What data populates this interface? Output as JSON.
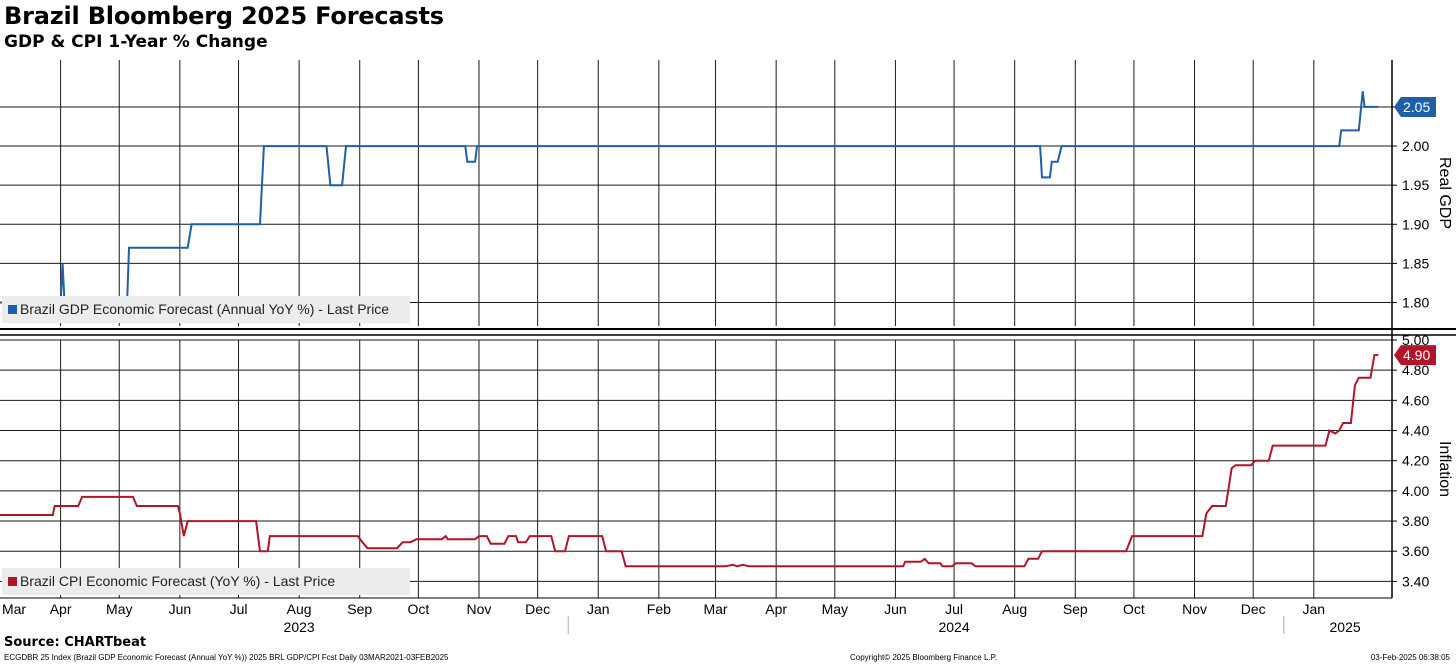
{
  "header": {
    "title": "Brazil Bloomberg 2025 Forecasts",
    "subtitle": "GDP & CPI 1-Year % Change"
  },
  "footer": {
    "source": "Source: CHARTbeat",
    "left_note": "ECGDBR 25 Index (Brazil GDP Economic Forecast (Annual YoY %)) 2025 BRL GDP/CPI Fcst  Daily 03MAR2021-03FEB2025",
    "copyright": "Copyright© 2025 Bloomberg Finance L.P.",
    "timestamp": "03-Feb-2025 06:38:05"
  },
  "chart_data": [
    {
      "type": "line",
      "ylabel": "Real GDP",
      "ylim": [
        1.77,
        2.11
      ],
      "yticks": [
        "1.80",
        "1.85",
        "1.90",
        "1.95",
        "2.00",
        "2.05"
      ],
      "grid": true,
      "legend_position": "bottom-left",
      "last_value": "2.05",
      "series": [
        {
          "name": "Brazil GDP Economic Forecast (Annual YoY %) - Last Price",
          "color": "#1f5fa6",
          "points": [
            [
              "2023-03-01",
              1.8
            ],
            [
              "2023-04-01",
              1.8
            ],
            [
              "2023-04-02",
              1.85
            ],
            [
              "2023-04-03",
              1.8
            ],
            [
              "2023-05-05",
              1.8
            ],
            [
              "2023-05-06",
              1.87
            ],
            [
              "2023-06-05",
              1.87
            ],
            [
              "2023-06-07",
              1.9
            ],
            [
              "2023-07-12",
              1.9
            ],
            [
              "2023-07-14",
              2.0
            ],
            [
              "2023-08-15",
              2.0
            ],
            [
              "2023-08-17",
              1.95
            ],
            [
              "2023-08-23",
              1.95
            ],
            [
              "2023-08-25",
              2.0
            ],
            [
              "2023-10-25",
              2.0
            ],
            [
              "2023-10-26",
              1.98
            ],
            [
              "2023-10-30",
              1.98
            ],
            [
              "2023-10-31",
              2.0
            ],
            [
              "2024-08-14",
              2.0
            ],
            [
              "2024-08-15",
              1.96
            ],
            [
              "2024-08-19",
              1.96
            ],
            [
              "2024-08-20",
              1.98
            ],
            [
              "2024-08-23",
              1.98
            ],
            [
              "2024-08-25",
              2.0
            ],
            [
              "2025-01-14",
              2.0
            ],
            [
              "2025-01-15",
              2.02
            ],
            [
              "2025-01-24",
              2.02
            ],
            [
              "2025-01-26",
              2.07
            ],
            [
              "2025-01-27",
              2.05
            ],
            [
              "2025-02-03",
              2.05
            ]
          ]
        }
      ]
    },
    {
      "type": "line",
      "ylabel": "Inflation",
      "ylim": [
        3.29,
        5.0
      ],
      "yticks": [
        "3.40",
        "3.60",
        "3.80",
        "4.00",
        "4.20",
        "4.40",
        "4.60",
        "4.80",
        "5.00"
      ],
      "grid": true,
      "legend_position": "bottom-left",
      "last_value": "4.90",
      "series": [
        {
          "name": "Brazil CPI Economic Forecast (YoY %) - Last Price",
          "color": "#b0152a",
          "points": [
            [
              "2023-03-01",
              3.84
            ],
            [
              "2023-03-28",
              3.84
            ],
            [
              "2023-03-29",
              3.9
            ],
            [
              "2023-04-10",
              3.9
            ],
            [
              "2023-04-12",
              3.96
            ],
            [
              "2023-05-08",
              3.96
            ],
            [
              "2023-05-10",
              3.9
            ],
            [
              "2023-05-31",
              3.9
            ],
            [
              "2023-06-01",
              3.85
            ],
            [
              "2023-06-03",
              3.7
            ],
            [
              "2023-06-05",
              3.8
            ],
            [
              "2023-07-10",
              3.8
            ],
            [
              "2023-07-12",
              3.6
            ],
            [
              "2023-07-16",
              3.6
            ],
            [
              "2023-07-17",
              3.7
            ],
            [
              "2023-08-31",
              3.7
            ],
            [
              "2023-09-03",
              3.65
            ],
            [
              "2023-09-05",
              3.62
            ],
            [
              "2023-09-20",
              3.62
            ],
            [
              "2023-09-23",
              3.66
            ],
            [
              "2023-09-27",
              3.66
            ],
            [
              "2023-09-30",
              3.68
            ],
            [
              "2023-10-13",
              3.68
            ],
            [
              "2023-10-15",
              3.7
            ],
            [
              "2023-10-16",
              3.68
            ],
            [
              "2023-10-30",
              3.68
            ],
            [
              "2023-11-01",
              3.7
            ],
            [
              "2023-11-05",
              3.7
            ],
            [
              "2023-11-07",
              3.65
            ],
            [
              "2023-11-14",
              3.65
            ],
            [
              "2023-11-16",
              3.7
            ],
            [
              "2023-11-20",
              3.7
            ],
            [
              "2023-11-21",
              3.66
            ],
            [
              "2023-11-25",
              3.66
            ],
            [
              "2023-11-27",
              3.7
            ],
            [
              "2023-12-08",
              3.7
            ],
            [
              "2023-12-10",
              3.6
            ],
            [
              "2023-12-15",
              3.6
            ],
            [
              "2023-12-17",
              3.7
            ],
            [
              "2024-01-03",
              3.7
            ],
            [
              "2024-01-05",
              3.6
            ],
            [
              "2024-01-13",
              3.6
            ],
            [
              "2024-01-15",
              3.5
            ],
            [
              "2024-03-06",
              3.5
            ],
            [
              "2024-03-10",
              3.51
            ],
            [
              "2024-03-12",
              3.5
            ],
            [
              "2024-03-15",
              3.51
            ],
            [
              "2024-03-18",
              3.5
            ],
            [
              "2024-06-05",
              3.5
            ],
            [
              "2024-06-06",
              3.53
            ],
            [
              "2024-06-14",
              3.53
            ],
            [
              "2024-06-16",
              3.55
            ],
            [
              "2024-06-18",
              3.52
            ],
            [
              "2024-06-24",
              3.52
            ],
            [
              "2024-06-25",
              3.5
            ],
            [
              "2024-06-30",
              3.5
            ],
            [
              "2024-07-02",
              3.52
            ],
            [
              "2024-07-10",
              3.52
            ],
            [
              "2024-07-12",
              3.5
            ],
            [
              "2024-08-06",
              3.5
            ],
            [
              "2024-08-08",
              3.55
            ],
            [
              "2024-08-13",
              3.55
            ],
            [
              "2024-08-15",
              3.6
            ],
            [
              "2024-09-27",
              3.6
            ],
            [
              "2024-09-30",
              3.7
            ],
            [
              "2024-11-05",
              3.7
            ],
            [
              "2024-11-07",
              3.85
            ],
            [
              "2024-11-10",
              3.9
            ],
            [
              "2024-11-17",
              3.9
            ],
            [
              "2024-11-20",
              4.15
            ],
            [
              "2024-11-22",
              4.17
            ],
            [
              "2024-11-30",
              4.17
            ],
            [
              "2024-12-02",
              4.2
            ],
            [
              "2024-12-09",
              4.2
            ],
            [
              "2024-12-11",
              4.3
            ],
            [
              "2025-01-07",
              4.3
            ],
            [
              "2025-01-09",
              4.4
            ],
            [
              "2025-01-12",
              4.38
            ],
            [
              "2025-01-14",
              4.4
            ],
            [
              "2025-01-16",
              4.45
            ],
            [
              "2025-01-20",
              4.45
            ],
            [
              "2025-01-22",
              4.7
            ],
            [
              "2025-01-24",
              4.75
            ],
            [
              "2025-01-30",
              4.75
            ],
            [
              "2025-02-01",
              4.9
            ],
            [
              "2025-02-03",
              4.9
            ]
          ]
        }
      ]
    }
  ],
  "x_axis": {
    "months": [
      {
        "label": "Mar",
        "date": "2023-03-01"
      },
      {
        "label": "Apr",
        "date": "2023-04-01"
      },
      {
        "label": "May",
        "date": "2023-05-01"
      },
      {
        "label": "Jun",
        "date": "2023-06-01"
      },
      {
        "label": "Jul",
        "date": "2023-07-01"
      },
      {
        "label": "Aug",
        "date": "2023-08-01"
      },
      {
        "label": "Sep",
        "date": "2023-09-01"
      },
      {
        "label": "Oct",
        "date": "2023-10-01"
      },
      {
        "label": "Nov",
        "date": "2023-11-01"
      },
      {
        "label": "Dec",
        "date": "2023-12-01"
      },
      {
        "label": "Jan",
        "date": "2024-01-01"
      },
      {
        "label": "Feb",
        "date": "2024-02-01"
      },
      {
        "label": "Mar",
        "date": "2024-03-01"
      },
      {
        "label": "Apr",
        "date": "2024-04-01"
      },
      {
        "label": "May",
        "date": "2024-05-01"
      },
      {
        "label": "Jun",
        "date": "2024-06-01"
      },
      {
        "label": "Jul",
        "date": "2024-07-01"
      },
      {
        "label": "Aug",
        "date": "2024-08-01"
      },
      {
        "label": "Sep",
        "date": "2024-09-01"
      },
      {
        "label": "Oct",
        "date": "2024-10-01"
      },
      {
        "label": "Nov",
        "date": "2024-11-01"
      },
      {
        "label": "Dec",
        "date": "2024-12-01"
      },
      {
        "label": "Jan",
        "date": "2025-01-01"
      }
    ],
    "years": [
      {
        "label": "2023",
        "date": "2023-08-01"
      },
      {
        "label": "2024",
        "date": "2024-07-01"
      },
      {
        "label": "2025",
        "date": "2025-01-17"
      }
    ],
    "range": [
      "2023-03-01",
      "2025-02-10"
    ]
  }
}
